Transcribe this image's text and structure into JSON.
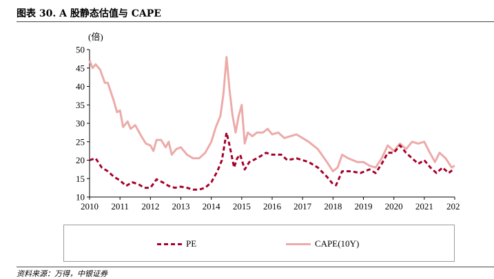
{
  "figure": {
    "title": "图表 30. A 股静态估值与 CAPE",
    "source": "资料来源：万得，中银证券"
  },
  "chart_data": {
    "type": "line",
    "ylabel": "(倍)",
    "ylim": [
      10,
      50
    ],
    "yticks": [
      "10",
      "15",
      "20",
      "25",
      "30",
      "35",
      "40",
      "45",
      "50"
    ],
    "xlim": [
      2010,
      2022
    ],
    "xticks": [
      "2010",
      "2011",
      "2012",
      "2013",
      "2014",
      "2015",
      "2016",
      "2017",
      "2018",
      "2019",
      "2020",
      "2021",
      "202"
    ],
    "grid": false,
    "legend_position": "bottom",
    "series": [
      {
        "name": "PE",
        "style": "dashed",
        "color": "#a5002a",
        "points": [
          [
            2010.0,
            20.0
          ],
          [
            2010.2,
            20.5
          ],
          [
            2010.4,
            18.0
          ],
          [
            2010.6,
            17.0
          ],
          [
            2010.8,
            15.5
          ],
          [
            2011.0,
            14.5
          ],
          [
            2011.2,
            13.0
          ],
          [
            2011.4,
            14.0
          ],
          [
            2011.6,
            13.5
          ],
          [
            2011.8,
            12.5
          ],
          [
            2012.0,
            12.5
          ],
          [
            2012.2,
            14.8
          ],
          [
            2012.4,
            14.0
          ],
          [
            2012.6,
            13.0
          ],
          [
            2012.8,
            12.5
          ],
          [
            2013.0,
            12.8
          ],
          [
            2013.2,
            12.5
          ],
          [
            2013.4,
            12.0
          ],
          [
            2013.6,
            12.0
          ],
          [
            2013.8,
            12.5
          ],
          [
            2014.0,
            14.0
          ],
          [
            2014.2,
            17.0
          ],
          [
            2014.35,
            20.0
          ],
          [
            2014.5,
            27.5
          ],
          [
            2014.6,
            24.0
          ],
          [
            2014.75,
            18.0
          ],
          [
            2014.85,
            20.5
          ],
          [
            2014.95,
            21.5
          ],
          [
            2015.1,
            17.5
          ],
          [
            2015.25,
            19.5
          ],
          [
            2015.5,
            20.5
          ],
          [
            2015.8,
            22.0
          ],
          [
            2016.0,
            21.5
          ],
          [
            2016.3,
            21.5
          ],
          [
            2016.5,
            20.0
          ],
          [
            2016.8,
            20.5
          ],
          [
            2017.0,
            20.0
          ],
          [
            2017.2,
            19.5
          ],
          [
            2017.5,
            18.0
          ],
          [
            2017.8,
            15.5
          ],
          [
            2018.0,
            13.5
          ],
          [
            2018.1,
            13.2
          ],
          [
            2018.3,
            17.0
          ],
          [
            2018.6,
            17.0
          ],
          [
            2018.9,
            16.5
          ],
          [
            2019.2,
            17.5
          ],
          [
            2019.4,
            16.5
          ],
          [
            2019.6,
            19.0
          ],
          [
            2019.8,
            22.0
          ],
          [
            2020.0,
            22.0
          ],
          [
            2020.2,
            24.0
          ],
          [
            2020.4,
            22.0
          ],
          [
            2020.6,
            20.5
          ],
          [
            2020.8,
            19.0
          ],
          [
            2021.0,
            20.0
          ],
          [
            2021.2,
            18.0
          ],
          [
            2021.4,
            16.5
          ],
          [
            2021.6,
            18.0
          ],
          [
            2021.8,
            16.5
          ],
          [
            2021.95,
            17.5
          ]
        ]
      },
      {
        "name": "CAPE(10Y)",
        "style": "solid",
        "color": "#ecaaa8",
        "points": [
          [
            2010.0,
            47.0
          ],
          [
            2010.1,
            45.0
          ],
          [
            2010.2,
            46.0
          ],
          [
            2010.35,
            44.5
          ],
          [
            2010.5,
            41.0
          ],
          [
            2010.6,
            41.0
          ],
          [
            2010.8,
            36.0
          ],
          [
            2010.9,
            33.0
          ],
          [
            2011.0,
            33.5
          ],
          [
            2011.1,
            29.0
          ],
          [
            2011.25,
            30.5
          ],
          [
            2011.35,
            28.5
          ],
          [
            2011.5,
            29.5
          ],
          [
            2011.7,
            26.5
          ],
          [
            2011.85,
            24.5
          ],
          [
            2012.0,
            24.0
          ],
          [
            2012.1,
            22.5
          ],
          [
            2012.2,
            25.5
          ],
          [
            2012.35,
            25.5
          ],
          [
            2012.5,
            23.5
          ],
          [
            2012.6,
            25.0
          ],
          [
            2012.7,
            21.5
          ],
          [
            2012.85,
            23.0
          ],
          [
            2013.0,
            23.5
          ],
          [
            2013.2,
            21.5
          ],
          [
            2013.4,
            20.5
          ],
          [
            2013.6,
            20.5
          ],
          [
            2013.8,
            22.0
          ],
          [
            2014.0,
            25.0
          ],
          [
            2014.15,
            29.0
          ],
          [
            2014.3,
            32.0
          ],
          [
            2014.4,
            38.0
          ],
          [
            2014.5,
            48.0
          ],
          [
            2014.6,
            39.0
          ],
          [
            2014.7,
            32.0
          ],
          [
            2014.8,
            27.5
          ],
          [
            2014.9,
            32.0
          ],
          [
            2015.0,
            35.0
          ],
          [
            2015.1,
            24.5
          ],
          [
            2015.2,
            27.5
          ],
          [
            2015.35,
            26.5
          ],
          [
            2015.5,
            27.5
          ],
          [
            2015.7,
            27.5
          ],
          [
            2015.85,
            28.5
          ],
          [
            2016.0,
            27.0
          ],
          [
            2016.2,
            27.5
          ],
          [
            2016.4,
            26.0
          ],
          [
            2016.6,
            26.5
          ],
          [
            2016.8,
            27.0
          ],
          [
            2017.0,
            26.0
          ],
          [
            2017.2,
            25.0
          ],
          [
            2017.5,
            23.0
          ],
          [
            2017.8,
            19.5
          ],
          [
            2018.0,
            17.0
          ],
          [
            2018.15,
            18.0
          ],
          [
            2018.3,
            21.5
          ],
          [
            2018.5,
            20.5
          ],
          [
            2018.8,
            19.5
          ],
          [
            2019.0,
            19.5
          ],
          [
            2019.2,
            18.5
          ],
          [
            2019.4,
            18.0
          ],
          [
            2019.6,
            20.5
          ],
          [
            2019.8,
            24.0
          ],
          [
            2020.0,
            22.5
          ],
          [
            2020.2,
            24.5
          ],
          [
            2020.4,
            23.0
          ],
          [
            2020.6,
            25.0
          ],
          [
            2020.8,
            24.5
          ],
          [
            2021.0,
            25.0
          ],
          [
            2021.15,
            22.5
          ],
          [
            2021.35,
            19.5
          ],
          [
            2021.5,
            22.0
          ],
          [
            2021.7,
            20.5
          ],
          [
            2021.9,
            18.0
          ],
          [
            2022.0,
            18.5
          ]
        ]
      }
    ]
  }
}
